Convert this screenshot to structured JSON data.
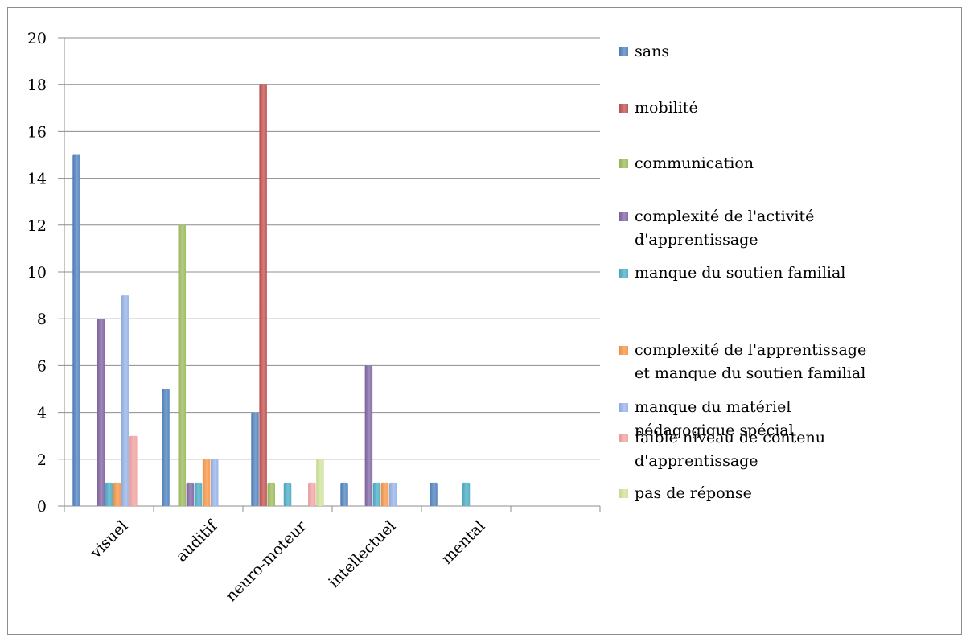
{
  "chart_data": {
    "type": "bar",
    "categories": [
      "visuel",
      "auditif",
      "neuro-moteur",
      "intellectuel",
      "mental",
      ""
    ],
    "series": [
      {
        "name": "sans",
        "color": "#4f81bd",
        "values": [
          15,
          5,
          4,
          1,
          1,
          0
        ]
      },
      {
        "name": "mobilité",
        "color": "#c0504d",
        "values": [
          0,
          0,
          18,
          0,
          0,
          0
        ]
      },
      {
        "name": "communication",
        "color": "#9bbb59",
        "values": [
          0,
          12,
          1,
          0,
          0,
          0
        ]
      },
      {
        "name": "complexité de l'activité d'apprentissage",
        "color": "#8064a2",
        "values": [
          8,
          1,
          0,
          6,
          0,
          0
        ]
      },
      {
        "name": "manque du soutien familial",
        "color": "#4bacc6",
        "values": [
          1,
          1,
          1,
          1,
          1,
          0
        ]
      },
      {
        "name": "complexité de l'apprentissage et manque du soutien familial",
        "color": "#f79646",
        "values": [
          1,
          2,
          0,
          1,
          0,
          0
        ]
      },
      {
        "name": "manque du matériel pédagogique spécial",
        "color": "#95b3e8",
        "values": [
          9,
          2,
          0,
          1,
          0,
          0
        ]
      },
      {
        "name": "faible niveau de contenu d'apprentissage",
        "color": "#f2a2a0",
        "values": [
          3,
          0,
          1,
          0,
          0,
          0
        ]
      },
      {
        "name": "pas de réponse",
        "color": "#cfe39a",
        "values": [
          0,
          0,
          2,
          0,
          0,
          0
        ]
      }
    ],
    "legend_lines": [
      [
        "sans"
      ],
      [
        "mobilité"
      ],
      [
        "communication"
      ],
      [
        "complexité de l'activité",
        "d'apprentissage"
      ],
      [
        "manque du soutien familial"
      ],
      [
        "complexité de l'apprentissage",
        "et manque du soutien familial"
      ],
      [
        "manque du matériel",
        "pédagogique spécial"
      ],
      [
        "faible niveau de contenu",
        "d'apprentissage"
      ],
      [
        "pas de réponse"
      ]
    ],
    "ylim": [
      0,
      20
    ],
    "yticks": [
      0,
      2,
      4,
      6,
      8,
      10,
      12,
      14,
      16,
      18,
      20
    ],
    "grid": true,
    "legend": "right",
    "title": "",
    "xlabel": "",
    "ylabel": ""
  }
}
